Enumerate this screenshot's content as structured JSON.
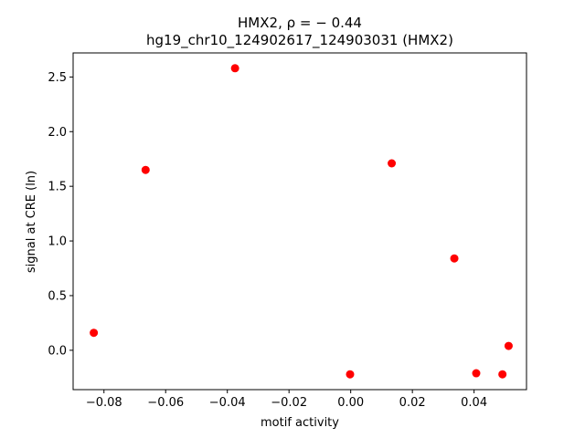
{
  "chart_data": {
    "type": "scatter",
    "title_line1": "HMX2, ρ = − 0.44",
    "title_line2": "hg19_chr10_124902617_124903031 (HMX2)",
    "xlabel": "motif activity",
    "ylabel": "signal at CRE (ln)",
    "xlim": [
      -0.09,
      0.057
    ],
    "ylim": [
      -0.36,
      2.72
    ],
    "xticks": [
      -0.08,
      -0.06,
      -0.04,
      -0.02,
      0.0,
      0.02,
      0.04
    ],
    "xtick_labels": [
      "−0.08",
      "−0.06",
      "−0.04",
      "−0.02",
      "0.00",
      "0.02",
      "0.04"
    ],
    "yticks": [
      0.0,
      0.5,
      1.0,
      1.5,
      2.0,
      2.5
    ],
    "ytick_labels": [
      "0.0",
      "0.5",
      "1.0",
      "1.5",
      "2.0",
      "2.5"
    ],
    "grid": false,
    "marker_color": "#ff0000",
    "points": [
      {
        "x": -0.0833,
        "y": 0.16
      },
      {
        "x": -0.0665,
        "y": 1.65
      },
      {
        "x": -0.0375,
        "y": 2.58
      },
      {
        "x": -0.0002,
        "y": -0.22
      },
      {
        "x": 0.0133,
        "y": 1.71
      },
      {
        "x": 0.0336,
        "y": 0.84
      },
      {
        "x": 0.0407,
        "y": -0.21
      },
      {
        "x": 0.0492,
        "y": -0.22
      },
      {
        "x": 0.0512,
        "y": 0.04
      }
    ]
  }
}
